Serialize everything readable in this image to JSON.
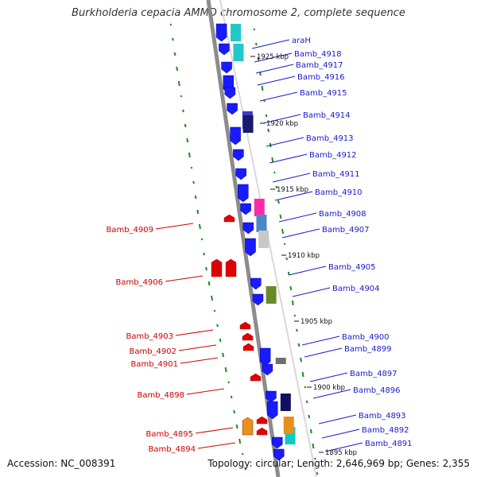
{
  "title": "Burkholderia cepacia AMMD chromosome 2, complete sequence",
  "footer": {
    "accession": "Accession: NC_008391",
    "summary": "Topology: circular; Length: 2,646,969 bp; Genes: 2,355"
  },
  "colors": {
    "forward_strand": "#1a1aff",
    "reverse_strand": "#e00000",
    "forward_label": "#1a1acc",
    "reverse_label": "#cc0000",
    "backbone": "#8c8c8c",
    "gc_ticks": "#1e8c1e"
  },
  "scale_ticks": [
    "1925 kbp",
    "1920 kbp",
    "1915 kbp",
    "1910 kbp",
    "1905 kbp",
    "1900 kbp",
    "1895 kbp"
  ],
  "forward_labels": [
    "araH",
    "Bamb_4918",
    "Bamb_4917",
    "Bamb_4916",
    "Bamb_4915",
    "Bamb_4914",
    "Bamb_4913",
    "Bamb_4912",
    "Bamb_4911",
    "Bamb_4910",
    "Bamb_4908",
    "Bamb_4907",
    "Bamb_4905",
    "Bamb_4904",
    "Bamb_4900",
    "Bamb_4899",
    "Bamb_4897",
    "Bamb_4896",
    "Bamb_4893",
    "Bamb_4892",
    "Bamb_4891"
  ],
  "reverse_labels": [
    "Bamb_4909",
    "Bamb_4906",
    "Bamb_4903",
    "Bamb_4902",
    "Bamb_4901",
    "Bamb_4898",
    "Bamb_4895",
    "Bamb_4894"
  ],
  "cog_colors": [
    "#20c8c8",
    "#20c8c8",
    "#3a3acc",
    "#1a1a6a",
    "#ff2aa8",
    "#4a88c8",
    "#c8c8c8",
    "#6a8a2a",
    "#6e6e6e",
    "#101060",
    "#10c8c8",
    "#e8901a"
  ]
}
